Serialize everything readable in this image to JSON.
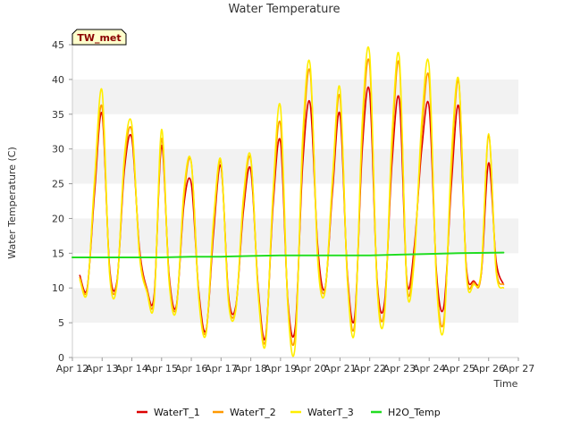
{
  "chart_data": {
    "type": "line",
    "title": "Water Temperature",
    "xlabel": "Time",
    "ylabel": "Water Temperature (C)",
    "badge": "TW_met",
    "x_ticks": [
      "Apr 12",
      "Apr 13",
      "Apr 14",
      "Apr 15",
      "Apr 16",
      "Apr 17",
      "Apr 18",
      "Apr 19",
      "Apr 20",
      "Apr 21",
      "Apr 22",
      "Apr 23",
      "Apr 24",
      "Apr 25",
      "Apr 26",
      "Apr 27"
    ],
    "y_ticks": [
      0,
      5,
      10,
      15,
      20,
      25,
      30,
      35,
      40,
      45
    ],
    "xlim": [
      "Apr 12",
      "Apr 27"
    ],
    "ylim": [
      0,
      45
    ],
    "grid": "horizontal bands",
    "legend_position": "bottom",
    "series": [
      {
        "name": "WaterT_1",
        "color": "#dd0000",
        "x": [
          "Apr 12 06:00",
          "Apr 12 12:00",
          "Apr 12 18:00",
          "Apr 13 00:00",
          "Apr 13 06:00",
          "Apr 13 12:00",
          "Apr 13 18:00",
          "Apr 14 00:00",
          "Apr 14 06:00",
          "Apr 14 12:00",
          "Apr 14 18:00",
          "Apr 15 00:00",
          "Apr 15 06:00",
          "Apr 15 12:00",
          "Apr 15 18:00",
          "Apr 16 00:00",
          "Apr 16 06:00",
          "Apr 16 12:00",
          "Apr 16 18:00",
          "Apr 17 00:00",
          "Apr 17 06:00",
          "Apr 17 12:00",
          "Apr 17 18:00",
          "Apr 18 00:00",
          "Apr 18 06:00",
          "Apr 18 12:00",
          "Apr 18 18:00",
          "Apr 19 00:00",
          "Apr 19 06:00",
          "Apr 19 12:00",
          "Apr 19 18:00",
          "Apr 20 00:00",
          "Apr 20 06:00",
          "Apr 20 12:00",
          "Apr 20 18:00",
          "Apr 21 00:00",
          "Apr 21 06:00",
          "Apr 21 12:00",
          "Apr 21 18:00",
          "Apr 22 00:00",
          "Apr 22 06:00",
          "Apr 22 12:00",
          "Apr 22 18:00",
          "Apr 23 00:00",
          "Apr 23 06:00",
          "Apr 23 12:00",
          "Apr 23 18:00",
          "Apr 24 00:00",
          "Apr 24 06:00",
          "Apr 24 12:00",
          "Apr 24 18:00",
          "Apr 25 00:00",
          "Apr 25 06:00",
          "Apr 25 12:00",
          "Apr 25 18:00",
          "Apr 26 00:00",
          "Apr 26 06:00",
          "Apr 26 12:00"
        ],
        "values": [
          11.8,
          10.0,
          24.0,
          35.0,
          13.0,
          11.0,
          27.0,
          31.5,
          16.0,
          10.0,
          9.0,
          30.5,
          12.0,
          7.5,
          22.0,
          25.0,
          9.5,
          4.0,
          18.0,
          27.5,
          9.0,
          7.5,
          21.0,
          27.0,
          10.0,
          3.0,
          22.0,
          31.0,
          8.0,
          4.5,
          28.0,
          36.5,
          16.0,
          10.0,
          24.0,
          35.0,
          12.0,
          6.0,
          30.0,
          38.0,
          11.0,
          8.0,
          28.0,
          37.0,
          11.0,
          16.0,
          30.0,
          36.0,
          12.0,
          7.5,
          25.0,
          36.0,
          13.0,
          11.0,
          12.0,
          28.0,
          14.0,
          10.5
        ]
      },
      {
        "name": "WaterT_2",
        "color": "#ff9900",
        "x": [
          "Apr 12 06:00",
          "Apr 12 12:00",
          "Apr 12 18:00",
          "Apr 13 00:00",
          "Apr 13 06:00",
          "Apr 13 12:00",
          "Apr 13 18:00",
          "Apr 14 00:00",
          "Apr 14 06:00",
          "Apr 14 12:00",
          "Apr 14 18:00",
          "Apr 15 00:00",
          "Apr 15 06:00",
          "Apr 15 12:00",
          "Apr 15 18:00",
          "Apr 16 00:00",
          "Apr 16 06:00",
          "Apr 16 12:00",
          "Apr 16 18:00",
          "Apr 17 00:00",
          "Apr 17 06:00",
          "Apr 17 12:00",
          "Apr 17 18:00",
          "Apr 18 00:00",
          "Apr 18 06:00",
          "Apr 18 12:00",
          "Apr 18 18:00",
          "Apr 19 00:00",
          "Apr 19 06:00",
          "Apr 19 12:00",
          "Apr 19 18:00",
          "Apr 20 00:00",
          "Apr 20 06:00",
          "Apr 20 12:00",
          "Apr 20 18:00",
          "Apr 21 00:00",
          "Apr 21 06:00",
          "Apr 21 12:00",
          "Apr 21 18:00",
          "Apr 22 00:00",
          "Apr 22 06:00",
          "Apr 22 12:00",
          "Apr 22 18:00",
          "Apr 23 00:00",
          "Apr 23 06:00",
          "Apr 23 12:00",
          "Apr 23 18:00",
          "Apr 24 00:00",
          "Apr 24 06:00",
          "Apr 24 12:00",
          "Apr 24 18:00",
          "Apr 25 00:00",
          "Apr 25 06:00",
          "Apr 25 12:00",
          "Apr 25 18:00",
          "Apr 26 00:00",
          "Apr 26 06:00",
          "Apr 26 12:00"
        ],
        "values": [
          11.5,
          9.8,
          25.0,
          36.0,
          12.5,
          10.8,
          28.0,
          32.5,
          15.5,
          9.8,
          8.5,
          31.5,
          11.5,
          7.3,
          23.0,
          28.0,
          9.0,
          3.8,
          19.0,
          28.0,
          8.5,
          7.2,
          22.0,
          28.5,
          9.5,
          2.5,
          23.0,
          33.5,
          7.5,
          3.5,
          30.0,
          41.0,
          15.0,
          9.8,
          25.0,
          37.5,
          11.5,
          5.0,
          32.0,
          42.0,
          10.5,
          7.0,
          30.0,
          42.0,
          10.5,
          15.0,
          32.0,
          40.0,
          11.0,
          5.5,
          27.0,
          39.5,
          12.5,
          10.8,
          12.0,
          32.0,
          13.0,
          10.5
        ]
      },
      {
        "name": "WaterT_3",
        "color": "#ffee00",
        "x": [
          "Apr 12 06:00",
          "Apr 12 12:00",
          "Apr 12 18:00",
          "Apr 13 00:00",
          "Apr 13 06:00",
          "Apr 13 12:00",
          "Apr 13 18:00",
          "Apr 14 00:00",
          "Apr 14 06:00",
          "Apr 14 12:00",
          "Apr 14 18:00",
          "Apr 15 00:00",
          "Apr 15 06:00",
          "Apr 15 12:00",
          "Apr 15 18:00",
          "Apr 16 00:00",
          "Apr 16 06:00",
          "Apr 16 12:00",
          "Apr 16 18:00",
          "Apr 17 00:00",
          "Apr 17 06:00",
          "Apr 17 12:00",
          "Apr 17 18:00",
          "Apr 18 00:00",
          "Apr 18 06:00",
          "Apr 18 12:00",
          "Apr 18 18:00",
          "Apr 19 00:00",
          "Apr 19 06:00",
          "Apr 19 12:00",
          "Apr 19 18:00",
          "Apr 20 00:00",
          "Apr 20 06:00",
          "Apr 20 12:00",
          "Apr 20 18:00",
          "Apr 21 00:00",
          "Apr 21 06:00",
          "Apr 21 12:00",
          "Apr 21 18:00",
          "Apr 22 00:00",
          "Apr 22 06:00",
          "Apr 22 12:00",
          "Apr 22 18:00",
          "Apr 23 00:00",
          "Apr 23 06:00",
          "Apr 23 12:00",
          "Apr 23 18:00",
          "Apr 24 00:00",
          "Apr 24 06:00",
          "Apr 24 12:00",
          "Apr 24 18:00",
          "Apr 25 00:00",
          "Apr 25 06:00",
          "Apr 25 12:00",
          "Apr 25 18:00",
          "Apr 26 00:00",
          "Apr 26 06:00",
          "Apr 26 12:00"
        ],
        "values": [
          11.2,
          9.5,
          26.0,
          38.3,
          12.0,
          10.5,
          29.0,
          33.5,
          15.0,
          9.5,
          8.0,
          32.8,
          11.0,
          7.0,
          24.0,
          28.0,
          8.5,
          3.5,
          20.0,
          28.3,
          8.0,
          7.0,
          23.0,
          28.8,
          9.0,
          2.0,
          24.0,
          36.0,
          7.0,
          2.0,
          32.0,
          42.0,
          14.0,
          9.5,
          26.0,
          38.7,
          11.0,
          4.2,
          34.0,
          43.5,
          10.0,
          6.2,
          32.0,
          43.0,
          10.0,
          14.0,
          34.0,
          41.8,
          10.5,
          4.5,
          29.0,
          39.7,
          12.0,
          10.5,
          12.5,
          32.2,
          12.5,
          10.0
        ]
      },
      {
        "name": "H2O_Temp",
        "color": "#22dd22",
        "x": [
          "Apr 12",
          "Apr 13",
          "Apr 14",
          "Apr 15",
          "Apr 16",
          "Apr 17",
          "Apr 18",
          "Apr 19",
          "Apr 20",
          "Apr 21",
          "Apr 22",
          "Apr 23",
          "Apr 24",
          "Apr 25",
          "Apr 26 12:00"
        ],
        "values": [
          14.4,
          14.4,
          14.4,
          14.4,
          14.5,
          14.5,
          14.6,
          14.7,
          14.7,
          14.7,
          14.7,
          14.8,
          14.9,
          15.0,
          15.1
        ]
      }
    ]
  }
}
